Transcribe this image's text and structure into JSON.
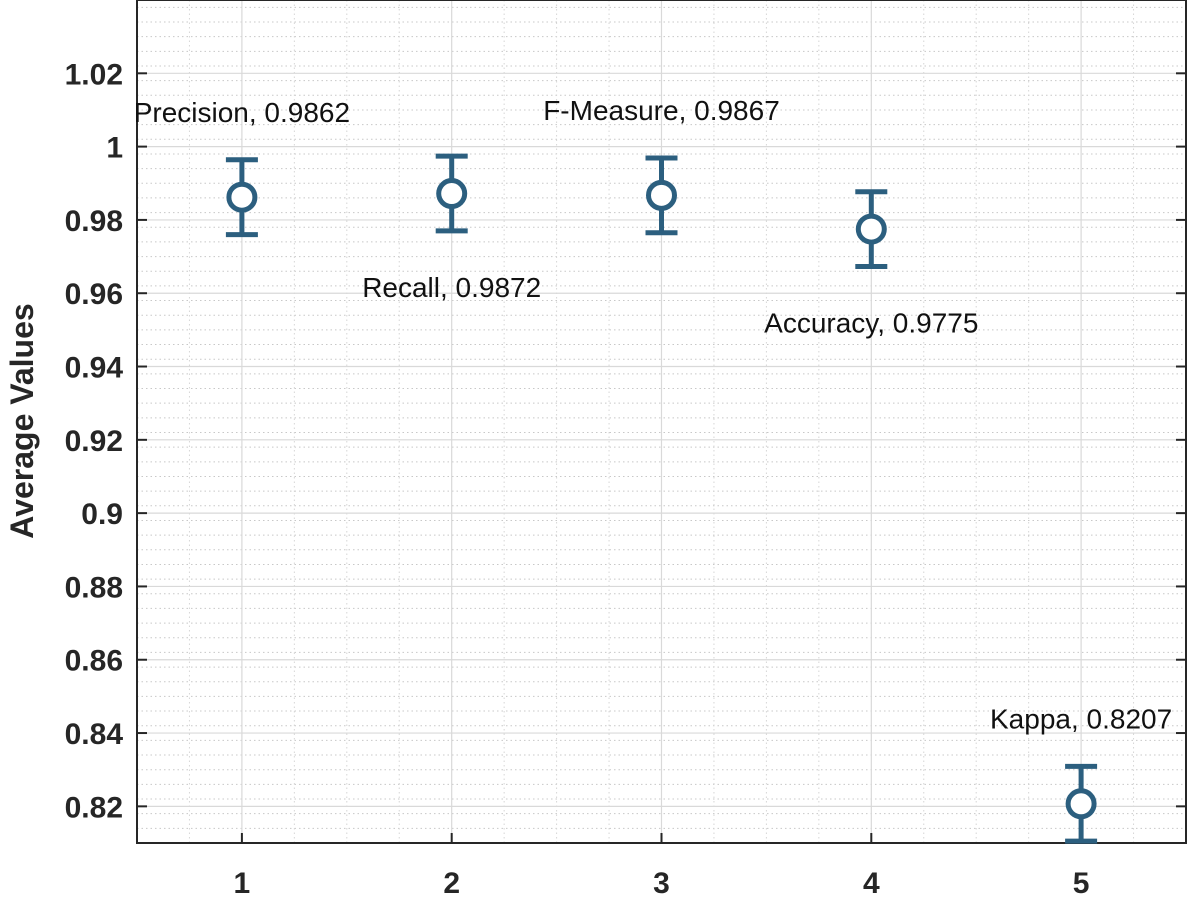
{
  "chart_data": {
    "type": "scatter",
    "title": "",
    "xlabel": "",
    "ylabel": "Average Values",
    "xlim": [
      0.5,
      5.5
    ],
    "ylim": [
      0.81,
      1.04
    ],
    "xticks": [
      1,
      2,
      3,
      4,
      5
    ],
    "yticks": [
      0.82,
      0.84,
      0.86,
      0.88,
      0.9,
      0.92,
      0.94,
      0.96,
      0.98,
      1,
      1.02
    ],
    "ytick_labels": [
      "0.82",
      "0.84",
      "0.86",
      "0.88",
      "0.9",
      "0.92",
      "0.94",
      "0.96",
      "0.98",
      "1",
      "1.02"
    ],
    "grid": true,
    "minor_grid": true,
    "marker": "open-circle-with-error-bars",
    "color": "#2c5f7f",
    "points": [
      {
        "x": 1,
        "y": 0.9862,
        "err_low": 0.0102,
        "err_high": 0.0102,
        "label": "Precision, 0.9862",
        "label_pos": "above"
      },
      {
        "x": 2,
        "y": 0.9872,
        "err_low": 0.0102,
        "err_high": 0.0102,
        "label": "Recall, 0.9872",
        "label_pos": "below"
      },
      {
        "x": 3,
        "y": 0.9867,
        "err_low": 0.0102,
        "err_high": 0.0102,
        "label": "F-Measure, 0.9867",
        "label_pos": "above"
      },
      {
        "x": 4,
        "y": 0.9775,
        "err_low": 0.0102,
        "err_high": 0.0102,
        "label": "Accuracy, 0.9775",
        "label_pos": "below"
      },
      {
        "x": 5,
        "y": 0.8207,
        "err_low": 0.0102,
        "err_high": 0.0102,
        "label": "Kappa, 0.8207",
        "label_pos": "above"
      }
    ]
  }
}
